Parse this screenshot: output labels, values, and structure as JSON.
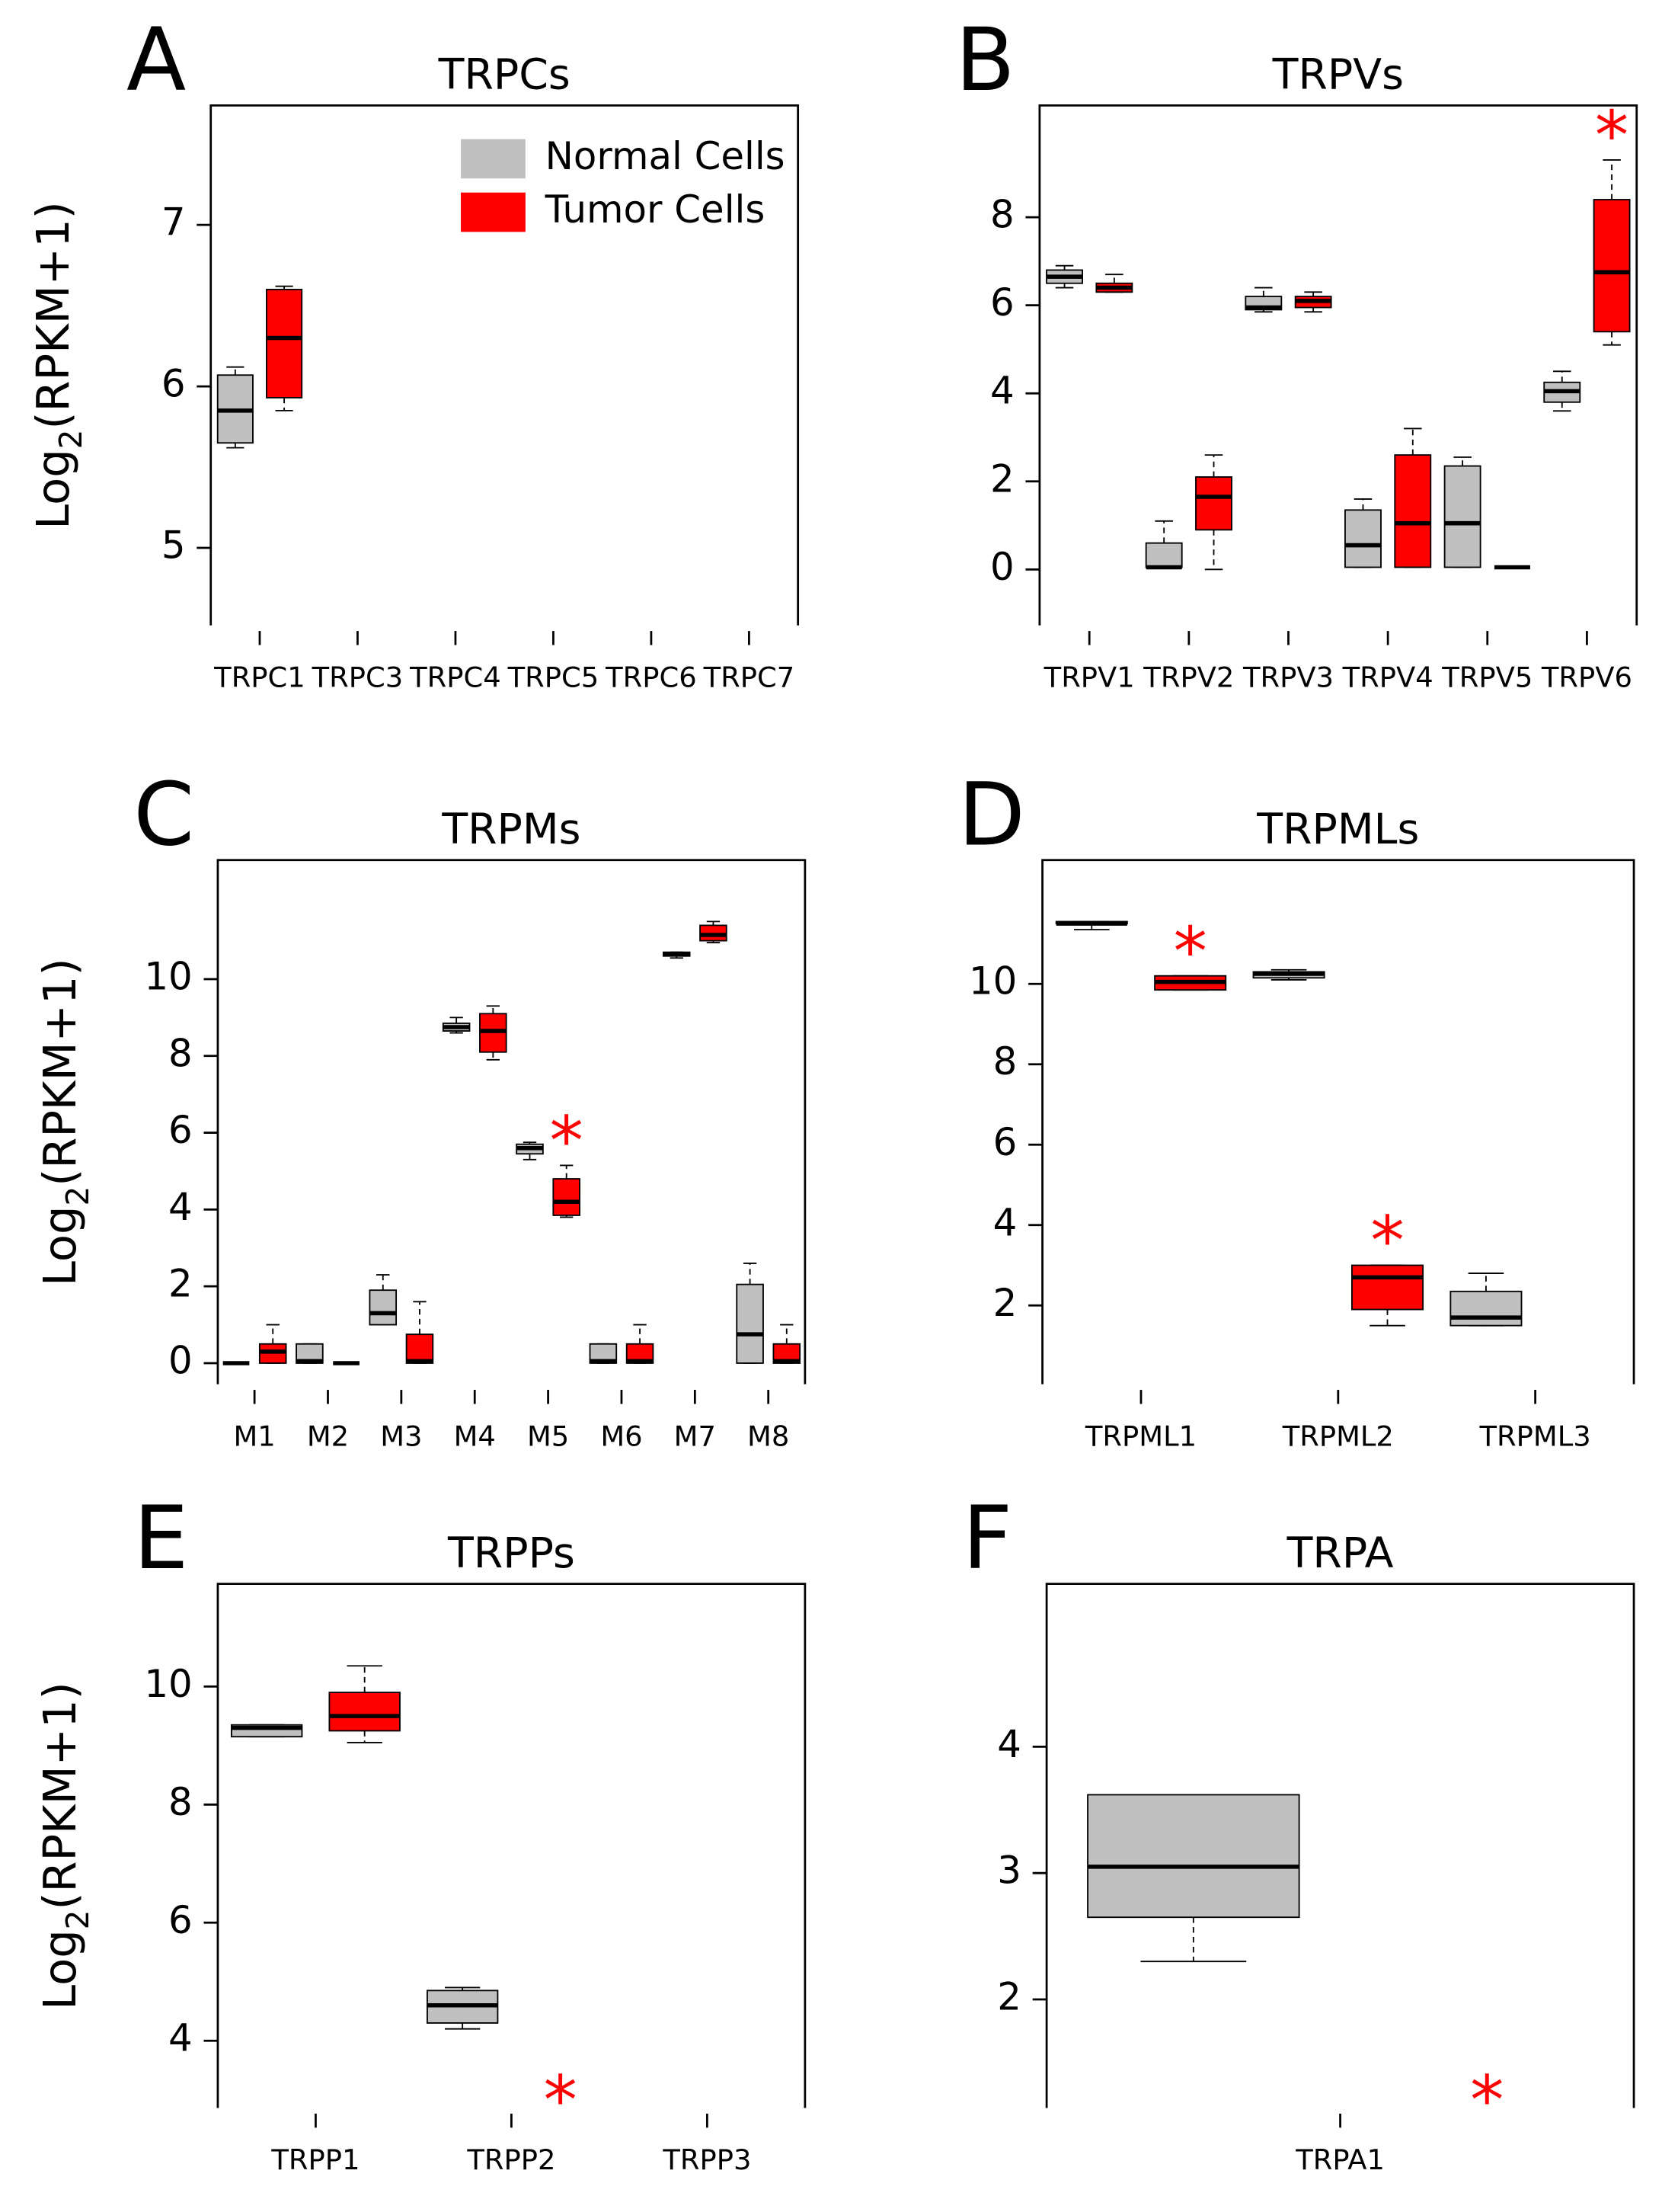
{
  "chart_data": [
    {
      "type": "box",
      "panel_label": "A",
      "title": "TRPCs",
      "ylabel": {
        "base": "Log",
        "sub": "2",
        "rest": "(RPKM+1)"
      },
      "categories": [
        "TRPC1",
        "TRPC3",
        "TRPC4",
        "TRPC5",
        "TRPC6",
        "TRPC7"
      ],
      "ylim": [
        4.52,
        7.74
      ],
      "yticks": [
        5,
        6,
        7
      ],
      "legend": "top-right",
      "significance_marker": "*",
      "series": [
        {
          "name": "Normal Cells",
          "color": "#c0c0c0",
          "significant": [
            false,
            false,
            false,
            false,
            false,
            false
          ],
          "boxes": [
            {
              "min": 5.62,
              "q1": 5.65,
              "median": 5.85,
              "q3": 6.07,
              "max": 6.12
            },
            null,
            null,
            null,
            null,
            null
          ]
        },
        {
          "name": "Tumor Cells",
          "color": "#ff0000",
          "significant": [
            false,
            false,
            false,
            false,
            false,
            false
          ],
          "boxes": [
            {
              "min": 5.85,
              "q1": 5.93,
              "median": 6.3,
              "q3": 6.6,
              "max": 6.62
            },
            null,
            null,
            null,
            null,
            null
          ]
        }
      ]
    },
    {
      "type": "box",
      "panel_label": "B",
      "title": "TRPVs",
      "categories": [
        "TRPV1",
        "TRPV2",
        "TRPV3",
        "TRPV4",
        "TRPV5",
        "TRPV6"
      ],
      "ylim": [
        -1.27,
        10.54
      ],
      "yticks": [
        0,
        2,
        4,
        6,
        8
      ],
      "significance_marker": "*",
      "series": [
        {
          "color": "#c0c0c0",
          "significant": [
            false,
            false,
            false,
            false,
            false,
            false
          ],
          "boxes": [
            {
              "min": 6.4,
              "q1": 6.5,
              "median": 6.65,
              "q3": 6.8,
              "max": 6.9
            },
            {
              "min": 0.05,
              "q1": 0.05,
              "median": 0.05,
              "q3": 0.6,
              "max": 1.1
            },
            {
              "min": 5.85,
              "q1": 5.9,
              "median": 5.95,
              "q3": 6.2,
              "max": 6.4
            },
            {
              "min": 0.05,
              "q1": 0.05,
              "median": 0.55,
              "q3": 1.35,
              "max": 1.6
            },
            {
              "min": 0.05,
              "q1": 0.05,
              "median": 1.05,
              "q3": 2.35,
              "max": 2.55
            },
            {
              "min": 3.6,
              "q1": 3.8,
              "median": 4.05,
              "q3": 4.25,
              "max": 4.5
            }
          ]
        },
        {
          "color": "#ff0000",
          "significant": [
            false,
            false,
            false,
            false,
            false,
            true
          ],
          "boxes": [
            {
              "min": 6.3,
              "q1": 6.3,
              "median": 6.4,
              "q3": 6.5,
              "max": 6.7
            },
            {
              "min": 0,
              "q1": 0.9,
              "median": 1.65,
              "q3": 2.1,
              "max": 2.6
            },
            {
              "min": 5.85,
              "q1": 5.95,
              "median": 6.1,
              "q3": 6.2,
              "max": 6.3
            },
            {
              "min": 0.05,
              "q1": 0.05,
              "median": 1.05,
              "q3": 2.6,
              "max": 3.2
            },
            {
              "min": 0.05,
              "q1": 0.05,
              "median": 0.05,
              "q3": 0.05,
              "max": 0.05
            },
            {
              "min": 5.1,
              "q1": 5.4,
              "median": 6.75,
              "q3": 8.4,
              "max": 9.3
            }
          ]
        }
      ]
    },
    {
      "type": "box",
      "panel_label": "C",
      "title": "TRPMs",
      "ylabel": {
        "base": "Log",
        "sub": "2",
        "rest": "(RPKM+1)"
      },
      "categories": [
        "M1",
        "M2",
        "M3",
        "M4",
        "M5",
        "M6",
        "M7",
        "M8"
      ],
      "ylim": [
        -0.55,
        13.1
      ],
      "yticks": [
        0,
        2,
        4,
        6,
        8,
        10
      ],
      "significance_marker": "*",
      "series": [
        {
          "color": "#c0c0c0",
          "significant": [
            false,
            false,
            false,
            false,
            false,
            false,
            false,
            false
          ],
          "boxes": [
            {
              "min": 0,
              "q1": 0,
              "median": 0,
              "q3": 0,
              "max": 0
            },
            {
              "min": 0,
              "q1": 0,
              "median": 0.05,
              "q3": 0.5,
              "max": 0.5
            },
            {
              "min": 1.0,
              "q1": 1.0,
              "median": 1.3,
              "q3": 1.9,
              "max": 2.3
            },
            {
              "min": 8.6,
              "q1": 8.65,
              "median": 8.75,
              "q3": 8.85,
              "max": 9.0
            },
            {
              "min": 5.3,
              "q1": 5.45,
              "median": 5.6,
              "q3": 5.7,
              "max": 5.75
            },
            {
              "min": 0,
              "q1": 0,
              "median": 0.05,
              "q3": 0.5,
              "max": 0.5
            },
            {
              "min": 10.55,
              "q1": 10.6,
              "median": 10.65,
              "q3": 10.7,
              "max": 10.7
            },
            {
              "min": 0,
              "q1": 0,
              "median": 0.75,
              "q3": 2.05,
              "max": 2.6
            }
          ]
        },
        {
          "color": "#ff0000",
          "significant": [
            false,
            false,
            false,
            false,
            true,
            false,
            false,
            false
          ],
          "boxes": [
            {
              "min": 0,
              "q1": 0,
              "median": 0.3,
              "q3": 0.5,
              "max": 1.0
            },
            {
              "min": 0,
              "q1": 0,
              "median": 0,
              "q3": 0,
              "max": 0
            },
            {
              "min": 0,
              "q1": 0,
              "median": 0.05,
              "q3": 0.75,
              "max": 1.6
            },
            {
              "min": 7.9,
              "q1": 8.1,
              "median": 8.65,
              "q3": 9.1,
              "max": 9.3
            },
            {
              "min": 3.8,
              "q1": 3.85,
              "median": 4.2,
              "q3": 4.8,
              "max": 5.15
            },
            {
              "min": 0,
              "q1": 0,
              "median": 0.05,
              "q3": 0.5,
              "max": 1.0
            },
            {
              "min": 10.95,
              "q1": 11.0,
              "median": 11.15,
              "q3": 11.4,
              "max": 11.5
            },
            {
              "min": 0,
              "q1": 0,
              "median": 0.05,
              "q3": 0.5,
              "max": 1.0
            }
          ]
        }
      ]
    },
    {
      "type": "box",
      "panel_label": "D",
      "title": "TRPMLs",
      "categories": [
        "TRPML1",
        "TRPML2",
        "TRPML3"
      ],
      "ylim": [
        0.04,
        13.08
      ],
      "yticks": [
        2,
        4,
        6,
        8,
        10
      ],
      "significance_marker": "*",
      "series": [
        {
          "color": "#c0c0c0",
          "significant": [
            false,
            false,
            false
          ],
          "boxes": [
            {
              "min": 11.35,
              "q1": 11.5,
              "median": 11.5,
              "q3": 11.55,
              "max": 11.55
            },
            {
              "min": 10.1,
              "q1": 10.15,
              "median": 10.25,
              "q3": 10.3,
              "max": 10.35
            },
            {
              "min": 1.5,
              "q1": 1.5,
              "median": 1.7,
              "q3": 2.35,
              "max": 2.8
            }
          ]
        },
        {
          "color": "#ff0000",
          "significant": [
            true,
            true,
            false
          ],
          "boxes": [
            {
              "min": 9.85,
              "q1": 9.85,
              "median": 10.05,
              "q3": 10.2,
              "max": 10.2
            },
            {
              "min": 1.5,
              "q1": 1.9,
              "median": 2.7,
              "q3": 3.0,
              "max": 3.0
            },
            null
          ]
        }
      ]
    },
    {
      "type": "box",
      "panel_label": "E",
      "title": "TRPPs",
      "ylabel": {
        "base": "Log",
        "sub": "2",
        "rest": "(RPKM+1)"
      },
      "categories": [
        "TRPP1",
        "TRPP2",
        "TRPP3"
      ],
      "ylim": [
        2.86,
        11.74
      ],
      "yticks": [
        4,
        6,
        8,
        10
      ],
      "significance_marker": "*",
      "series": [
        {
          "color": "#c0c0c0",
          "significant": [
            false,
            false,
            false
          ],
          "boxes": [
            {
              "min": 9.15,
              "q1": 9.15,
              "median": 9.3,
              "q3": 9.35,
              "max": 9.35
            },
            {
              "min": 4.2,
              "q1": 4.3,
              "median": 4.6,
              "q3": 4.85,
              "max": 4.9
            },
            null
          ]
        },
        {
          "color": "#ff0000",
          "significant": [
            false,
            true,
            false
          ],
          "boxes": [
            {
              "min": 9.05,
              "q1": 9.25,
              "median": 9.5,
              "q3": 9.9,
              "max": 10.35
            },
            null,
            null
          ]
        }
      ]
    },
    {
      "type": "box",
      "panel_label": "F",
      "title": "TRPA",
      "categories": [
        "TRPA1"
      ],
      "ylim": [
        1.14,
        5.29
      ],
      "yticks": [
        2,
        3,
        4
      ],
      "significance_marker": "*",
      "series": [
        {
          "color": "#c0c0c0",
          "significant": [
            false
          ],
          "boxes": [
            {
              "min": 2.3,
              "q1": 2.65,
              "median": 3.05,
              "q3": 3.62,
              "max": 3.62
            }
          ]
        },
        {
          "color": "#ff0000",
          "significant": [
            true
          ],
          "boxes": [
            null
          ]
        }
      ]
    }
  ]
}
